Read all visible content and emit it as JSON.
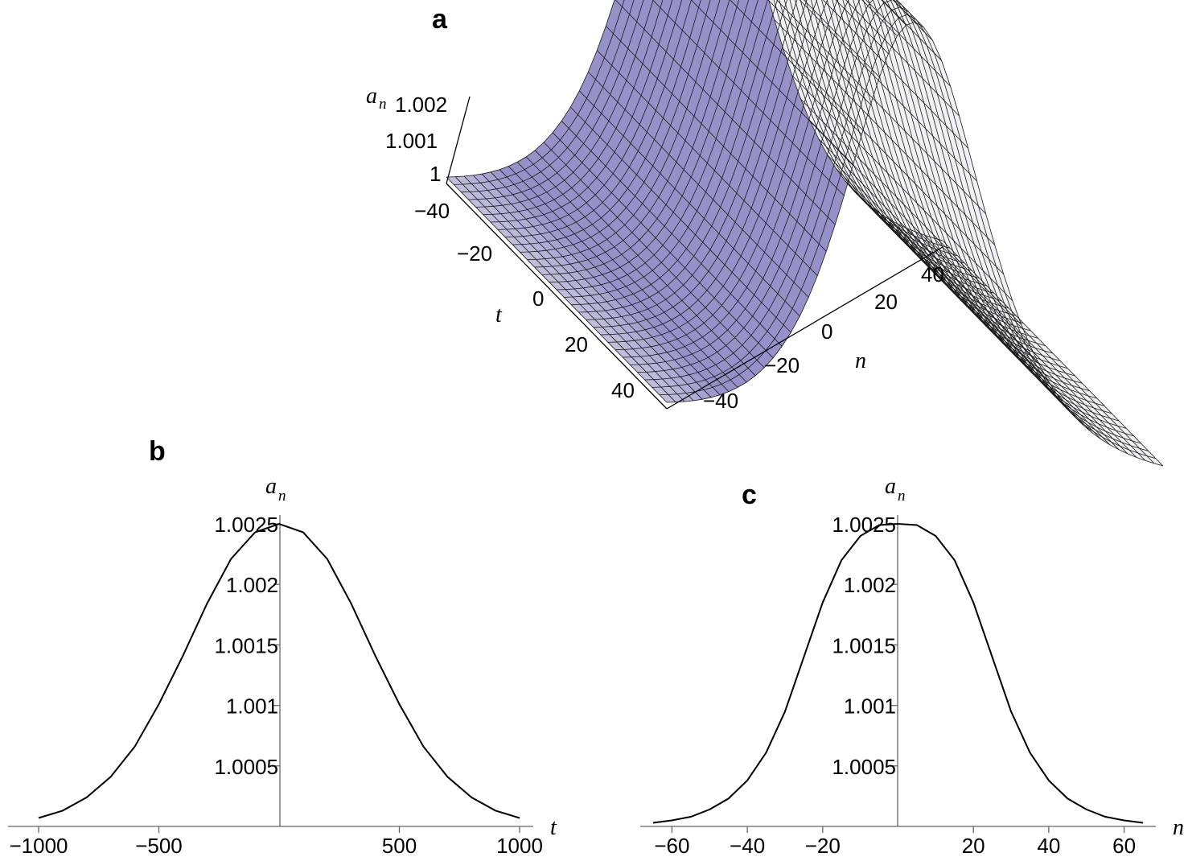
{
  "chart_data": [
    {
      "panel": "a",
      "type": "surface",
      "x_axis": {
        "label": "n",
        "ticks": [
          "40",
          "20",
          "0",
          "−20",
          "−40"
        ],
        "range": [
          -50,
          50
        ]
      },
      "y_axis": {
        "label": "t",
        "ticks": [
          "−40",
          "−20",
          "0",
          "20",
          "40"
        ],
        "range": [
          -50,
          50
        ]
      },
      "z_axis": {
        "label": "a",
        "label_subscript": "n",
        "ticks": [
          "1.002",
          "1.001",
          "1"
        ],
        "range": [
          1.0,
          1.0025
        ]
      },
      "surface_color": "#b3b0d6",
      "mesh": "on"
    },
    {
      "panel": "b",
      "type": "line",
      "xlabel": "t",
      "ylabel": "a",
      "ylabel_subscript": "n",
      "xlim": [
        -1000,
        1000
      ],
      "ylim": [
        1.0,
        1.0025
      ],
      "x_ticks": [
        "−1000",
        "−500",
        "500",
        "1000"
      ],
      "x_tick_values": [
        -1000,
        -500,
        500,
        1000
      ],
      "y_ticks": [
        "1.0025",
        "1.002",
        "1.0015",
        "1.001",
        "1.0005"
      ],
      "y_tick_values": [
        1.0025,
        1.002,
        1.0015,
        1.001,
        1.0005
      ],
      "x": [
        -1000,
        -900,
        -800,
        -700,
        -600,
        -500,
        -400,
        -300,
        -200,
        -100,
        0,
        100,
        200,
        300,
        400,
        500,
        600,
        700,
        800,
        900,
        1000
      ],
      "y": [
        1.00007,
        1.00013,
        1.00024,
        1.00041,
        1.00066,
        1.00101,
        1.00141,
        1.00184,
        1.00221,
        1.00243,
        1.0025,
        1.00243,
        1.00221,
        1.00184,
        1.00141,
        1.00101,
        1.00066,
        1.00041,
        1.00024,
        1.00013,
        1.00007
      ]
    },
    {
      "panel": "c",
      "type": "line",
      "xlabel": "n",
      "ylabel": "a",
      "ylabel_subscript": "n",
      "xlim": [
        -65,
        65
      ],
      "ylim": [
        1.0,
        1.0025
      ],
      "x_ticks": [
        "−60",
        "−40",
        "−20",
        "20",
        "40",
        "60"
      ],
      "x_tick_values": [
        -60,
        -40,
        -20,
        20,
        40,
        60
      ],
      "y_ticks": [
        "1.0025",
        "1.002",
        "1.0015",
        "1.001",
        "1.0005"
      ],
      "y_tick_values": [
        1.0025,
        1.002,
        1.0015,
        1.001,
        1.0005
      ],
      "x": [
        -65,
        -60,
        -55,
        -50,
        -45,
        -40,
        -35,
        -30,
        -25,
        -20,
        -15,
        -10,
        -5,
        0,
        5,
        10,
        15,
        20,
        25,
        30,
        35,
        40,
        45,
        50,
        55,
        60,
        65
      ],
      "y": [
        1.00003,
        1.00005,
        1.00008,
        1.00014,
        1.00023,
        1.00038,
        1.00061,
        1.00095,
        1.0014,
        1.00185,
        1.0022,
        1.0024,
        1.00249,
        1.0025,
        1.00249,
        1.0024,
        1.0022,
        1.00185,
        1.0014,
        1.00095,
        1.00061,
        1.00038,
        1.00023,
        1.00014,
        1.00008,
        1.00005,
        1.00003
      ]
    }
  ]
}
